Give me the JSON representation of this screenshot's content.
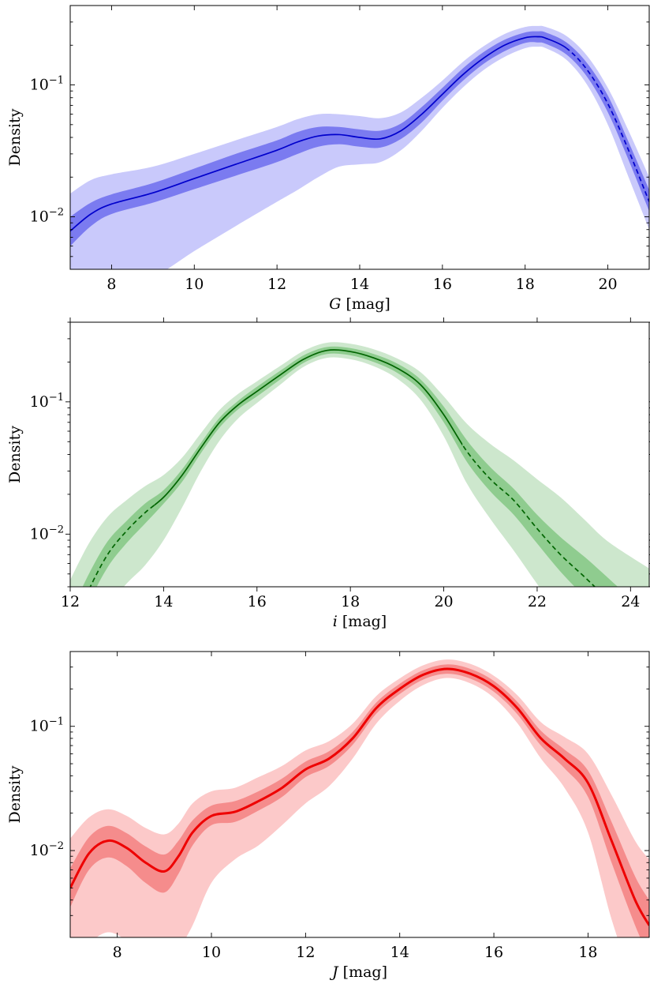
{
  "chart_data": [
    {
      "type": "line",
      "ylabel": "Density",
      "xlabel_var": "G",
      "xlabel_unit": " [mag]",
      "xlim": [
        7.0,
        21.0
      ],
      "ylim": [
        0.004,
        0.4
      ],
      "yscale": "log",
      "xticks": [
        8,
        10,
        12,
        14,
        16,
        18,
        20
      ],
      "yticks": [
        {
          "value": 0.1,
          "base": "10",
          "exp": "−1"
        },
        {
          "value": 0.01,
          "base": "10",
          "exp": "−2"
        }
      ],
      "colors": {
        "line": "#0000cc",
        "inner_band": "#7b7bf0",
        "outer_band": "#c9c9fb"
      },
      "solid_until": 19.0,
      "series": {
        "x": [
          7.0,
          7.5,
          8.0,
          9.0,
          10.0,
          11.0,
          12.0,
          12.5,
          13.0,
          13.5,
          14.0,
          14.5,
          15.0,
          15.5,
          16.0,
          16.5,
          17.0,
          17.5,
          18.0,
          18.3,
          18.5,
          19.0,
          19.5,
          20.0,
          20.5,
          21.0
        ],
        "median": [
          0.0078,
          0.0105,
          0.0125,
          0.0152,
          0.0195,
          0.025,
          0.032,
          0.037,
          0.041,
          0.042,
          0.04,
          0.039,
          0.045,
          0.06,
          0.085,
          0.12,
          0.16,
          0.2,
          0.228,
          0.232,
          0.226,
          0.19,
          0.13,
          0.072,
          0.032,
          0.013
        ],
        "inner_low": [
          0.006,
          0.0085,
          0.0105,
          0.0128,
          0.0162,
          0.0205,
          0.026,
          0.03,
          0.034,
          0.0355,
          0.034,
          0.0335,
          0.039,
          0.052,
          0.076,
          0.108,
          0.145,
          0.18,
          0.208,
          0.21,
          0.205,
          0.17,
          0.115,
          0.062,
          0.027,
          0.011
        ],
        "inner_high": [
          0.01,
          0.0128,
          0.0148,
          0.018,
          0.0232,
          0.03,
          0.038,
          0.044,
          0.048,
          0.048,
          0.046,
          0.045,
          0.051,
          0.068,
          0.095,
          0.134,
          0.178,
          0.22,
          0.25,
          0.255,
          0.25,
          0.21,
          0.146,
          0.083,
          0.037,
          0.016
        ],
        "outer_low": [
          0.0025,
          0.0028,
          0.003,
          0.0035,
          0.0055,
          0.0085,
          0.013,
          0.016,
          0.02,
          0.024,
          0.025,
          0.026,
          0.032,
          0.045,
          0.067,
          0.096,
          0.13,
          0.163,
          0.19,
          0.195,
          0.19,
          0.155,
          0.1,
          0.05,
          0.02,
          0.008
        ],
        "outer_high": [
          0.015,
          0.019,
          0.021,
          0.024,
          0.03,
          0.038,
          0.048,
          0.055,
          0.06,
          0.06,
          0.058,
          0.056,
          0.062,
          0.08,
          0.108,
          0.15,
          0.197,
          0.243,
          0.275,
          0.28,
          0.275,
          0.235,
          0.166,
          0.095,
          0.045,
          0.02
        ]
      }
    },
    {
      "type": "line",
      "ylabel": "Density",
      "xlabel_var": "i",
      "xlabel_unit": " [mag]",
      "xlim": [
        12.0,
        24.4
      ],
      "ylim": [
        0.004,
        0.4
      ],
      "yscale": "log",
      "xticks": [
        12,
        14,
        16,
        18,
        20,
        22,
        24
      ],
      "yticks": [
        {
          "value": 0.1,
          "base": "10",
          "exp": "−1"
        },
        {
          "value": 0.01,
          "base": "10",
          "exp": "−2"
        }
      ],
      "colors": {
        "line": "#006400",
        "inner_band": "#8fcc8f",
        "outer_band": "#cde7cd"
      },
      "solid_from": 13.8,
      "solid_until": 20.4,
      "series": {
        "x": [
          12.0,
          12.4,
          12.8,
          13.2,
          13.6,
          14.0,
          14.4,
          14.8,
          15.2,
          15.6,
          16.0,
          16.5,
          17.0,
          17.5,
          18.0,
          18.5,
          19.0,
          19.5,
          20.0,
          20.5,
          21.0,
          21.5,
          22.0,
          22.5,
          23.0,
          23.4,
          23.8,
          24.4
        ],
        "median": [
          0.0018,
          0.0038,
          0.007,
          0.0105,
          0.0145,
          0.019,
          0.028,
          0.045,
          0.07,
          0.095,
          0.12,
          0.16,
          0.21,
          0.245,
          0.24,
          0.215,
          0.18,
          0.135,
          0.08,
          0.042,
          0.026,
          0.018,
          0.011,
          0.007,
          0.0048,
          0.0035,
          0.0025,
          0.0015
        ],
        "inner_low": [
          0.0013,
          0.003,
          0.0056,
          0.0085,
          0.012,
          0.017,
          0.025,
          0.041,
          0.064,
          0.088,
          0.11,
          0.148,
          0.197,
          0.23,
          0.225,
          0.2,
          0.166,
          0.122,
          0.07,
          0.035,
          0.021,
          0.014,
          0.0085,
          0.0052,
          0.0034,
          0.0024,
          0.0017,
          0.001
        ],
        "inner_high": [
          0.0025,
          0.005,
          0.0088,
          0.0125,
          0.017,
          0.0215,
          0.031,
          0.049,
          0.076,
          0.102,
          0.13,
          0.172,
          0.225,
          0.26,
          0.255,
          0.23,
          0.195,
          0.148,
          0.092,
          0.051,
          0.032,
          0.022,
          0.014,
          0.0095,
          0.0068,
          0.0051,
          0.0038,
          0.0025
        ],
        "outer_low": [
          0.0007,
          0.0015,
          0.0028,
          0.0042,
          0.0058,
          0.009,
          0.016,
          0.03,
          0.051,
          0.075,
          0.098,
          0.135,
          0.184,
          0.215,
          0.21,
          0.186,
          0.15,
          0.104,
          0.055,
          0.024,
          0.013,
          0.0075,
          0.0042,
          0.0024,
          0.0015,
          0.0011,
          0.0008,
          0.0005
        ],
        "outer_high": [
          0.0045,
          0.0085,
          0.0135,
          0.018,
          0.023,
          0.028,
          0.038,
          0.058,
          0.087,
          0.115,
          0.143,
          0.187,
          0.243,
          0.28,
          0.275,
          0.25,
          0.213,
          0.168,
          0.11,
          0.068,
          0.048,
          0.036,
          0.026,
          0.019,
          0.013,
          0.0095,
          0.0075,
          0.0055
        ]
      }
    },
    {
      "type": "line",
      "ylabel": "Density",
      "xlabel_var": "J",
      "xlabel_unit": " [mag]",
      "xlim": [
        7.0,
        19.3
      ],
      "ylim": [
        0.002,
        0.4
      ],
      "yscale": "log",
      "xticks": [
        8,
        10,
        12,
        14,
        16,
        18
      ],
      "yticks": [
        {
          "value": 0.1,
          "base": "10",
          "exp": "−1"
        },
        {
          "value": 0.01,
          "base": "10",
          "exp": "−2"
        }
      ],
      "colors": {
        "line": "#ee0000",
        "inner_band": "#f58c8c",
        "outer_band": "#fcc9c9"
      },
      "series": {
        "x": [
          7.0,
          7.4,
          7.8,
          8.2,
          8.6,
          9.0,
          9.3,
          9.6,
          10.0,
          10.5,
          11.0,
          11.5,
          12.0,
          12.5,
          13.0,
          13.5,
          14.0,
          14.5,
          15.0,
          15.5,
          16.0,
          16.5,
          17.0,
          17.5,
          18.0,
          18.5,
          19.0,
          19.3
        ],
        "median": [
          0.005,
          0.0095,
          0.012,
          0.0105,
          0.008,
          0.0068,
          0.009,
          0.014,
          0.019,
          0.0205,
          0.025,
          0.032,
          0.045,
          0.055,
          0.08,
          0.14,
          0.2,
          0.26,
          0.29,
          0.265,
          0.21,
          0.14,
          0.08,
          0.055,
          0.035,
          0.012,
          0.004,
          0.0025
        ],
        "inner_low": [
          0.0035,
          0.007,
          0.0088,
          0.0075,
          0.0055,
          0.0046,
          0.0065,
          0.011,
          0.016,
          0.017,
          0.021,
          0.027,
          0.039,
          0.048,
          0.071,
          0.126,
          0.182,
          0.238,
          0.265,
          0.242,
          0.19,
          0.125,
          0.07,
          0.046,
          0.027,
          0.008,
          0.0025,
          0.0014
        ],
        "inner_high": [
          0.0072,
          0.0128,
          0.0158,
          0.0138,
          0.0108,
          0.0093,
          0.012,
          0.0175,
          0.023,
          0.025,
          0.03,
          0.038,
          0.052,
          0.063,
          0.09,
          0.155,
          0.22,
          0.283,
          0.315,
          0.29,
          0.232,
          0.157,
          0.092,
          0.065,
          0.044,
          0.017,
          0.0062,
          0.004
        ],
        "outer_low": [
          0.0013,
          0.0018,
          0.0022,
          0.0019,
          0.0015,
          0.0012,
          0.0016,
          0.0025,
          0.0055,
          0.0085,
          0.011,
          0.016,
          0.024,
          0.033,
          0.055,
          0.105,
          0.16,
          0.215,
          0.245,
          0.222,
          0.17,
          0.106,
          0.055,
          0.032,
          0.014,
          0.0028,
          0.0008,
          0.0005
        ],
        "outer_high": [
          0.0125,
          0.0185,
          0.0215,
          0.019,
          0.0152,
          0.0135,
          0.0165,
          0.024,
          0.03,
          0.032,
          0.039,
          0.048,
          0.064,
          0.076,
          0.105,
          0.175,
          0.243,
          0.31,
          0.345,
          0.318,
          0.255,
          0.178,
          0.108,
          0.082,
          0.06,
          0.028,
          0.012,
          0.0085
        ]
      }
    }
  ]
}
